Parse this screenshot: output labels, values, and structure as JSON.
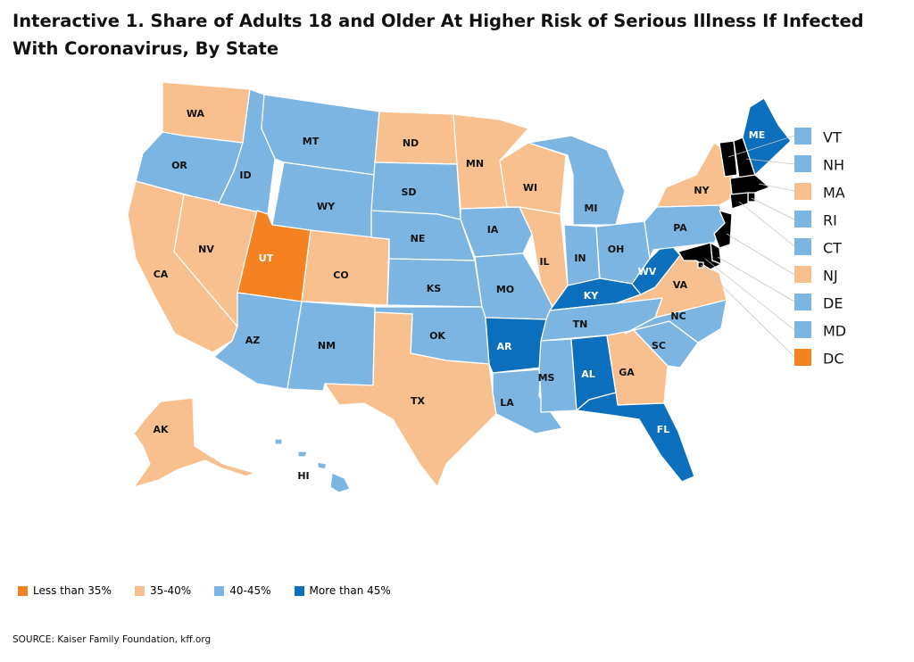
{
  "title": "Interactive 1. Share of Adults 18 and Older At Higher Risk of Serious Illness If Infected With Coronavirus, By State",
  "colors": {
    "lt35": "#f58220",
    "c3540": "#f8c08e",
    "c4045": "#7cb5e2",
    "gt45": "#0b6fbd"
  },
  "legend": [
    {
      "label": "Less than 35%",
      "category": "lt35"
    },
    {
      "label": "35-40%",
      "category": "c3540"
    },
    {
      "label": "40-45%",
      "category": "c4045"
    },
    {
      "label": "More than 45%",
      "category": "gt45"
    }
  ],
  "states": {
    "WA": {
      "label": "WA",
      "category": "c3540"
    },
    "OR": {
      "label": "OR",
      "category": "c4045"
    },
    "CA": {
      "label": "CA",
      "category": "c3540"
    },
    "NV": {
      "label": "NV",
      "category": "c3540"
    },
    "ID": {
      "label": "ID",
      "category": "c4045"
    },
    "MT": {
      "label": "MT",
      "category": "c4045"
    },
    "WY": {
      "label": "WY",
      "category": "c4045"
    },
    "UT": {
      "label": "UT",
      "category": "lt35"
    },
    "CO": {
      "label": "CO",
      "category": "c3540"
    },
    "AZ": {
      "label": "AZ",
      "category": "c4045"
    },
    "NM": {
      "label": "NM",
      "category": "c4045"
    },
    "ND": {
      "label": "ND",
      "category": "c3540"
    },
    "SD": {
      "label": "SD",
      "category": "c4045"
    },
    "NE": {
      "label": "NE",
      "category": "c4045"
    },
    "KS": {
      "label": "KS",
      "category": "c4045"
    },
    "OK": {
      "label": "OK",
      "category": "c4045"
    },
    "TX": {
      "label": "TX",
      "category": "c3540"
    },
    "MN": {
      "label": "MN",
      "category": "c3540"
    },
    "IA": {
      "label": "IA",
      "category": "c4045"
    },
    "MO": {
      "label": "MO",
      "category": "c4045"
    },
    "AR": {
      "label": "AR",
      "category": "gt45"
    },
    "LA": {
      "label": "LA",
      "category": "c4045"
    },
    "WI": {
      "label": "WI",
      "category": "c3540"
    },
    "IL": {
      "label": "IL",
      "category": "c3540"
    },
    "MI": {
      "label": "MI",
      "category": "c4045"
    },
    "IN": {
      "label": "IN",
      "category": "c4045"
    },
    "OH": {
      "label": "OH",
      "category": "c4045"
    },
    "KY": {
      "label": "KY",
      "category": "gt45"
    },
    "TN": {
      "label": "TN",
      "category": "c4045"
    },
    "MS": {
      "label": "MS",
      "category": "c4045"
    },
    "AL": {
      "label": "AL",
      "category": "gt45"
    },
    "GA": {
      "label": "GA",
      "category": "c3540"
    },
    "FL": {
      "label": "FL",
      "category": "gt45"
    },
    "SC": {
      "label": "SC",
      "category": "c4045"
    },
    "NC": {
      "label": "NC",
      "category": "c4045"
    },
    "VA": {
      "label": "VA",
      "category": "c3540"
    },
    "WV": {
      "label": "WV",
      "category": "gt45"
    },
    "PA": {
      "label": "PA",
      "category": "c4045"
    },
    "NY": {
      "label": "NY",
      "category": "c3540"
    },
    "ME": {
      "label": "ME",
      "category": "gt45"
    },
    "AK": {
      "label": "AK",
      "category": "c3540"
    },
    "HI": {
      "label": "HI",
      "category": "c4045"
    }
  },
  "small_states": [
    {
      "label": "VT",
      "category": "c4045"
    },
    {
      "label": "NH",
      "category": "c4045"
    },
    {
      "label": "MA",
      "category": "c3540"
    },
    {
      "label": "RI",
      "category": "c4045"
    },
    {
      "label": "CT",
      "category": "c4045"
    },
    {
      "label": "NJ",
      "category": "c3540"
    },
    {
      "label": "DE",
      "category": "c4045"
    },
    {
      "label": "MD",
      "category": "c4045"
    },
    {
      "label": "DC",
      "category": "lt35"
    }
  ],
  "source": "SOURCE: Kaiser Family Foundation, kff.org"
}
